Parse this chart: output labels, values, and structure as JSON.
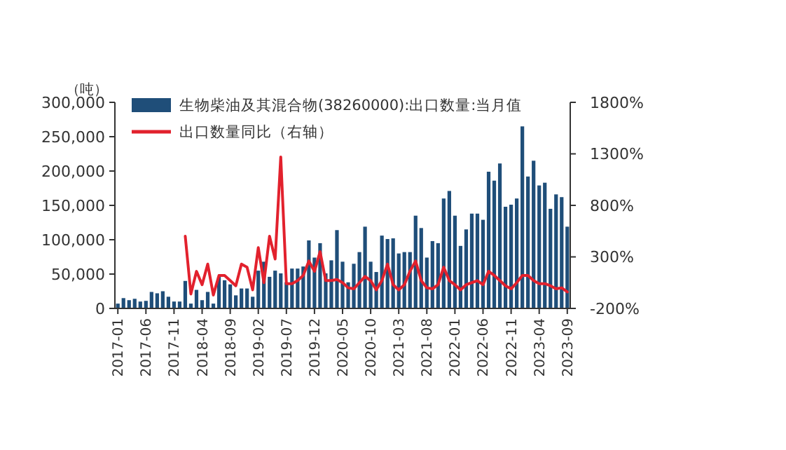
{
  "chart_data": {
    "type": "bar",
    "ylabel": "（吨）",
    "categories": [
      "2017-01",
      null,
      null,
      null,
      null,
      "2017-06",
      null,
      null,
      null,
      null,
      "2017-11",
      null,
      null,
      null,
      null,
      "2018-04",
      null,
      null,
      null,
      null,
      "2018-09",
      null,
      null,
      null,
      null,
      "2019-02",
      null,
      null,
      null,
      null,
      "2019-07",
      null,
      null,
      null,
      null,
      "2019-12",
      null,
      null,
      null,
      null,
      "2020-05",
      null,
      null,
      null,
      null,
      "2020-10",
      null,
      null,
      null,
      null,
      "2021-03",
      null,
      null,
      null,
      null,
      "2021-08",
      null,
      null,
      null,
      null,
      "2022-01",
      null,
      null,
      null,
      null,
      "2022-06",
      null,
      null,
      null,
      null,
      "2022-11",
      null,
      null,
      null,
      null,
      "2023-04",
      null,
      null,
      null,
      null,
      "2023-09"
    ],
    "series": [
      {
        "name": "生物柴油及其混合物(38260000):出口数量:当月值",
        "color": "#1f4e79",
        "values": [
          7000,
          15000,
          12000,
          14000,
          10000,
          11000,
          24000,
          22000,
          25000,
          17000,
          10000,
          10000,
          40000,
          7000,
          27000,
          12000,
          24000,
          7000,
          46000,
          41000,
          35000,
          19000,
          29000,
          29000,
          17000,
          55000,
          68000,
          46000,
          55000,
          51000,
          38000,
          58000,
          58000,
          61000,
          99000,
          74000,
          95000,
          51000,
          70000,
          114000,
          68000,
          38000,
          65000,
          82000,
          119000,
          68000,
          53000,
          106000,
          101000,
          102000,
          80000,
          82000,
          82000,
          135000,
          117000,
          74000,
          98000,
          95000,
          160000,
          171000,
          135000,
          91000,
          115000,
          138000,
          138000,
          129000,
          199000,
          186000,
          211000,
          148000,
          151000,
          160000,
          265000,
          192000,
          215000,
          179000,
          183000,
          145000,
          166000,
          162000,
          119000
        ]
      },
      {
        "name": "出口数量同比（右轴）",
        "type": "line",
        "axis": "y2",
        "color": "#e2212d",
        "values": [
          null,
          null,
          null,
          null,
          null,
          null,
          null,
          null,
          null,
          null,
          null,
          null,
          500,
          -60,
          160,
          30,
          230,
          -70,
          120,
          120,
          70,
          20,
          230,
          200,
          -20,
          390,
          50,
          500,
          280,
          1270,
          40,
          40,
          70,
          120,
          260,
          160,
          350,
          70,
          70,
          80,
          50,
          0,
          -10,
          50,
          110,
          70,
          -20,
          70,
          230,
          30,
          -20,
          30,
          160,
          260,
          70,
          0,
          -10,
          30,
          200,
          70,
          30,
          -20,
          30,
          50,
          70,
          30,
          160,
          120,
          70,
          20,
          -10,
          50,
          120,
          120,
          70,
          40,
          40,
          20,
          -10,
          0,
          -40
        ]
      }
    ],
    "ylim": [
      0,
      300000
    ],
    "yticks": [
      {
        "value": 0,
        "label": "0"
      },
      {
        "value": 50000,
        "label": "50,000"
      },
      {
        "value": 100000,
        "label": "100,000"
      },
      {
        "value": 150000,
        "label": "150,000"
      },
      {
        "value": 200000,
        "label": "200,000"
      },
      {
        "value": 250000,
        "label": "250,000"
      },
      {
        "value": 300000,
        "label": "300,000"
      }
    ],
    "y2lim": [
      -200,
      1800
    ],
    "y2ticks": [
      {
        "value": -200,
        "label": "-200%"
      },
      {
        "value": 300,
        "label": "300%"
      },
      {
        "value": 800,
        "label": "800%"
      },
      {
        "value": 1300,
        "label": "1300%"
      },
      {
        "value": 1800,
        "label": "1800%"
      }
    ],
    "legend": "top left",
    "grid": false
  }
}
